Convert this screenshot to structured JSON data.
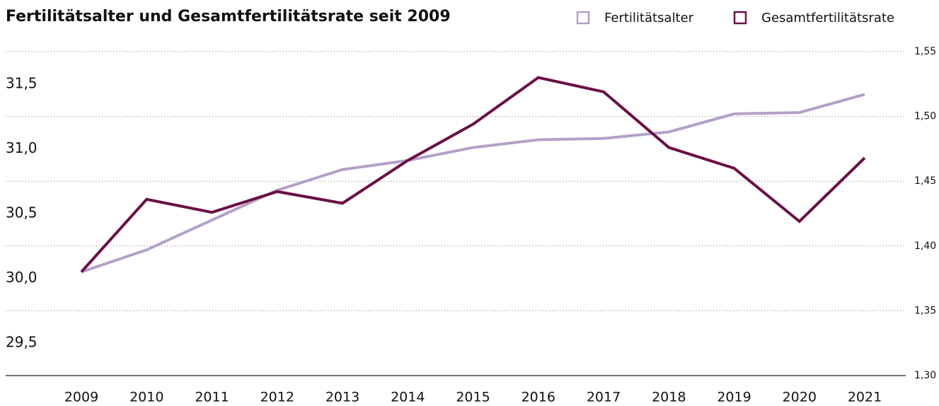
{
  "chart_data": {
    "type": "line",
    "title": "Fertilitätsalter und Gesamtfertilitätsrate seit 2009",
    "categories": [
      "2009",
      "2010",
      "2011",
      "2012",
      "2013",
      "2014",
      "2015",
      "2016",
      "2017",
      "2018",
      "2019",
      "2020",
      "2021"
    ],
    "series": [
      {
        "name": "Fertilitätsalter",
        "color": "#b3a0c9",
        "axis": "y",
        "values": [
          30.05,
          30.22,
          30.45,
          30.68,
          30.84,
          30.91,
          31.01,
          31.07,
          31.08,
          31.13,
          31.27,
          31.28,
          31.42
        ]
      },
      {
        "name": "Gesamtfertilitätsrate",
        "color": "#6b0f45",
        "axis": "y2",
        "values": [
          1.38,
          1.436,
          1.426,
          1.442,
          1.433,
          1.466,
          1.494,
          1.53,
          1.519,
          1.476,
          1.46,
          1.419,
          1.468
        ]
      }
    ],
    "ylim": [
      29.25,
      31.75
    ],
    "yticks": [
      {
        "value": 29.5,
        "label": "29,5"
      },
      {
        "value": 30.0,
        "label": "30,0"
      },
      {
        "value": 30.5,
        "label": "30,5"
      },
      {
        "value": 31.0,
        "label": "31,0"
      },
      {
        "value": 31.5,
        "label": "31,5"
      }
    ],
    "y2lim": [
      1.3,
      1.55
    ],
    "y2ticks": [
      {
        "value": 1.3,
        "label": "1,30"
      },
      {
        "value": 1.35,
        "label": "1,35"
      },
      {
        "value": 1.4,
        "label": "1,40"
      },
      {
        "value": 1.45,
        "label": "1,45"
      },
      {
        "value": 1.5,
        "label": "1,50"
      },
      {
        "value": 1.55,
        "label": "1,55"
      }
    ],
    "grid": true
  }
}
